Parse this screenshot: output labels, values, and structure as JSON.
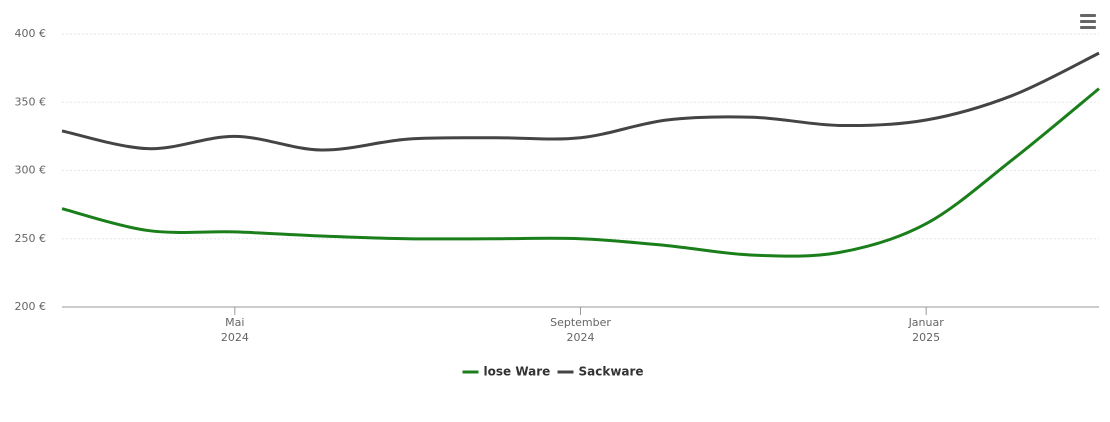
{
  "chart_data": {
    "type": "line",
    "x": [
      "2024-03",
      "2024-04",
      "2024-05",
      "2024-06",
      "2024-07",
      "2024-08",
      "2024-09",
      "2024-10",
      "2024-11",
      "2024-12",
      "2025-01",
      "2025-02",
      "2025-03"
    ],
    "series": [
      {
        "name": "lose Ware",
        "color": "#1a7f1a",
        "values": [
          272,
          256,
          255,
          252,
          250,
          250,
          250,
          245,
          238,
          240,
          261,
          308,
          360
        ]
      },
      {
        "name": "Sackware",
        "color": "#444444",
        "values": [
          329,
          316,
          325,
          315,
          323,
          324,
          324,
          337,
          339,
          333,
          337,
          355,
          386
        ]
      }
    ],
    "xlim": [
      "2024-03",
      "2025-03"
    ],
    "xticks": [
      {
        "value": "2024-05",
        "label": [
          "Mai",
          "2024"
        ]
      },
      {
        "value": "2024-09",
        "label": [
          "September",
          "2024"
        ]
      },
      {
        "value": "2025-01",
        "label": [
          "Januar",
          "2025"
        ]
      }
    ],
    "ylim": [
      200,
      400
    ],
    "yticks": [
      {
        "value": 200,
        "label": "200 €"
      },
      {
        "value": 250,
        "label": "250 €"
      },
      {
        "value": 300,
        "label": "300 €"
      },
      {
        "value": 350,
        "label": "350 €"
      },
      {
        "value": 400,
        "label": "400 €"
      }
    ],
    "grid": true,
    "legend": "bottom"
  }
}
